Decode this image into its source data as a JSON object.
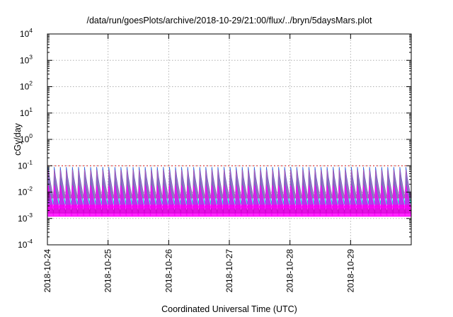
{
  "chart_data": {
    "type": "area",
    "title": "/data/run/goesPlots/archive/2018-10-29/21:00/flux/../bryn/5daysMars.plot",
    "xlabel": "Coordinated Universal Time (UTC)",
    "ylabel": "cGy/day",
    "yscale": "log",
    "ylim": [
      0.0001,
      10000
    ],
    "xlim": [
      "2018-10-24T00:00",
      "2018-10-30T00:00"
    ],
    "grid": true,
    "legend": "none",
    "x_ticks": [
      "2018-10-24",
      "2018-10-25",
      "2018-10-26",
      "2018-10-27",
      "2018-10-28",
      "2018-10-29"
    ],
    "y_ticks": [
      {
        "base": "10",
        "exp": "-4"
      },
      {
        "base": "10",
        "exp": "-3"
      },
      {
        "base": "10",
        "exp": "-2"
      },
      {
        "base": "10",
        "exp": "-1"
      },
      {
        "base": "10",
        "exp": "0"
      },
      {
        "base": "10",
        "exp": "1"
      },
      {
        "base": "10",
        "exp": "2"
      },
      {
        "base": "10",
        "exp": "3"
      },
      {
        "base": "10",
        "exp": "4"
      }
    ],
    "oscillation": {
      "cycles_per_day": 10,
      "peak_value": 0.1,
      "note_values_estimated": true
    },
    "series": [
      {
        "color": "#ff00ff",
        "min": 0.0012,
        "max": 0.025
      },
      {
        "color": "#cc00cc",
        "min": 0.0016,
        "max": 0.032
      },
      {
        "color": "#00c8c8",
        "min": 0.0035,
        "max": 0.045
      },
      {
        "color": "#2f64d8",
        "min": 0.006,
        "max": 0.09
      },
      {
        "color": "#b45ab4",
        "min": 0.006,
        "max": 0.07
      },
      {
        "color": "#ff00ff",
        "min": 0.0025,
        "max": 0.018
      }
    ]
  }
}
